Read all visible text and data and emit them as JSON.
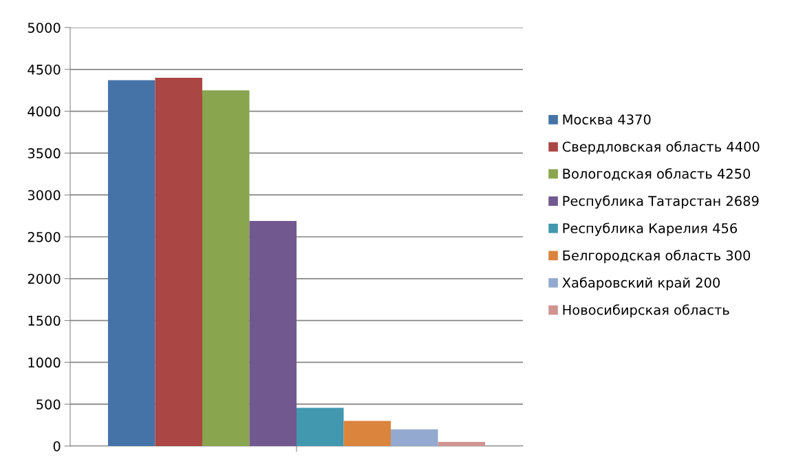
{
  "chart_data": {
    "type": "bar",
    "categories": [
      null
    ],
    "series": [
      {
        "name": "Москва 4370",
        "color": "#4573a7",
        "values": [
          4370
        ]
      },
      {
        "name": "Свердловская область 4400",
        "color": "#aa4643",
        "values": [
          4400
        ]
      },
      {
        "name": "Вологодская область 4250",
        "color": "#89a54e",
        "values": [
          4250
        ]
      },
      {
        "name": "Республика Татарстан 2689",
        "color": "#71588f",
        "values": [
          2689
        ]
      },
      {
        "name": "Республика Карелия 456",
        "color": "#4198af",
        "values": [
          456
        ]
      },
      {
        "name": "Белгородская область 300",
        "color": "#db843d",
        "values": [
          300
        ]
      },
      {
        "name": "Хабаровский край 200",
        "color": "#93a9cf",
        "values": [
          200
        ]
      },
      {
        "name": "Новосибирская область",
        "color": "#d19392",
        "values": [
          50
        ]
      }
    ],
    "ylim": [
      0,
      5000
    ],
    "yticks": [
      0,
      500,
      1000,
      1500,
      2000,
      2500,
      3000,
      3500,
      4000,
      4500,
      5000
    ],
    "grid": "y",
    "legend": "right"
  }
}
